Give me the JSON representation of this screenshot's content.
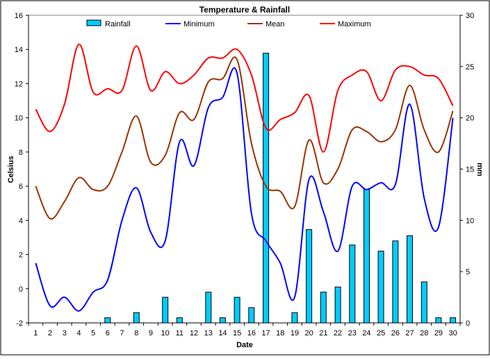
{
  "chart_data": {
    "type": "bar+line",
    "title": "Temperature & Rainfall",
    "xlabel": "Date",
    "ylabel_left": "Celsius",
    "ylabel_right": "mm",
    "x": [
      1,
      2,
      3,
      4,
      5,
      6,
      7,
      8,
      9,
      10,
      11,
      12,
      13,
      14,
      15,
      16,
      17,
      18,
      19,
      20,
      21,
      22,
      23,
      24,
      25,
      26,
      27,
      28,
      29,
      30
    ],
    "ylim_left": [
      -2,
      16
    ],
    "yticks_left": [
      -2,
      0,
      2,
      4,
      6,
      8,
      10,
      12,
      14,
      16
    ],
    "ylim_right": [
      0,
      30
    ],
    "yticks_right": [
      0,
      5,
      10,
      15,
      20,
      25,
      30
    ],
    "grid": false,
    "legend_position": "top",
    "series": [
      {
        "name": "Rainfall",
        "kind": "bar",
        "axis": "right",
        "color": "#00ccff",
        "values": [
          0,
          0,
          0,
          0,
          0,
          0.5,
          0,
          1.0,
          0,
          2.5,
          0.5,
          0,
          3.0,
          0.5,
          2.5,
          1.5,
          26.3,
          0,
          1.0,
          9.1,
          3.0,
          3.5,
          7.6,
          13.0,
          7.0,
          8.0,
          8.5,
          4.0,
          0.5,
          0.5
        ]
      },
      {
        "name": "Minimum",
        "kind": "line",
        "axis": "left",
        "color": "#0000ff",
        "values": [
          1.5,
          -1.0,
          -0.5,
          -1.3,
          -0.2,
          0.5,
          4.0,
          5.9,
          3.3,
          2.8,
          8.6,
          7.2,
          10.6,
          11.2,
          12.6,
          4.4,
          2.8,
          1.5,
          -0.5,
          6.4,
          4.5,
          2.2,
          6.0,
          5.8,
          6.2,
          6.1,
          10.8,
          5.3,
          3.6,
          10.0
        ]
      },
      {
        "name": "Mean",
        "kind": "line",
        "axis": "left",
        "color": "#993300",
        "values": [
          6.0,
          4.1,
          5.1,
          6.5,
          5.8,
          6.0,
          8.0,
          10.1,
          7.4,
          7.8,
          10.3,
          9.9,
          12.1,
          12.3,
          13.4,
          8.5,
          6.0,
          5.7,
          4.8,
          8.7,
          6.2,
          7.0,
          9.3,
          9.2,
          8.6,
          9.3,
          11.9,
          9.3,
          8.0,
          10.4
        ]
      },
      {
        "name": "Maximum",
        "kind": "line",
        "axis": "left",
        "color": "#ff0000",
        "values": [
          10.5,
          9.2,
          10.8,
          14.3,
          11.5,
          11.7,
          11.6,
          14.2,
          11.6,
          12.7,
          12.0,
          12.5,
          13.5,
          13.5,
          14.0,
          12.5,
          9.4,
          9.9,
          10.3,
          11.3,
          8.0,
          11.6,
          12.5,
          12.7,
          11.0,
          12.8,
          13.0,
          12.5,
          12.3,
          10.7
        ]
      }
    ]
  }
}
